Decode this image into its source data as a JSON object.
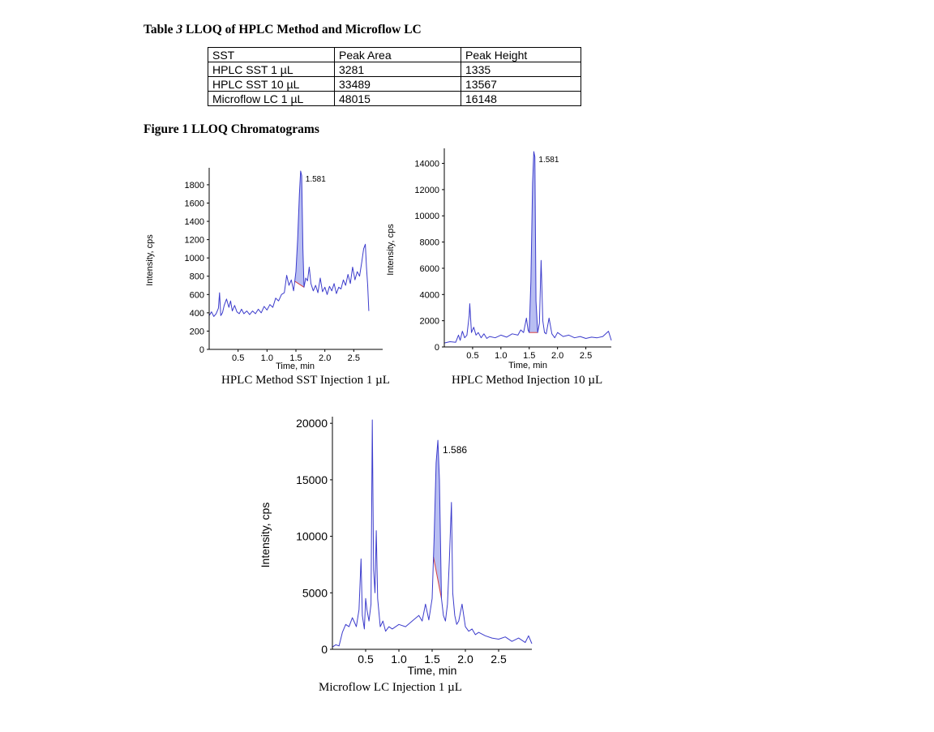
{
  "table": {
    "caption_prefix": "Table ",
    "caption_number": "3",
    "caption_text": " LLOQ of HPLC Method and Microflow LC",
    "headers": [
      "SST",
      "Peak Area",
      "Peak Height"
    ],
    "rows": [
      [
        "HPLC SST 1 µL",
        "3281",
        "1335"
      ],
      [
        "HPLC SST 10 µL",
        "33489",
        "13567"
      ],
      [
        "Microflow LC 1 µL",
        "48015",
        "16148"
      ]
    ]
  },
  "figure": {
    "title": "Figure 1 LLOQ Chromatograms"
  },
  "chart_data": [
    {
      "type": "line",
      "caption": "HPLC Method SST Injection 1 µL",
      "xlabel": "Time, min",
      "ylabel": "Intensity, cps",
      "xlim": [
        0.0,
        3.0
      ],
      "ylim": [
        0,
        1950
      ],
      "xticks": [
        "0.5",
        "1.0",
        "1.5",
        "2.0",
        "2.5"
      ],
      "yticks": [
        "0",
        "200",
        "400",
        "600",
        "800",
        "1000",
        "1200",
        "1400",
        "1600",
        "1800"
      ],
      "peak_label": "1.581",
      "peak": {
        "start": 1.48,
        "end": 1.64,
        "apex": 1.581
      },
      "series": [
        {
          "line_color": "#3c3ccc",
          "fill_color": "#b8bef2",
          "baseline_color": "#d94040",
          "x": [
            0.0,
            0.04,
            0.08,
            0.12,
            0.16,
            0.18,
            0.2,
            0.23,
            0.26,
            0.3,
            0.34,
            0.37,
            0.4,
            0.44,
            0.48,
            0.52,
            0.56,
            0.6,
            0.65,
            0.7,
            0.75,
            0.8,
            0.85,
            0.9,
            0.95,
            1.0,
            1.05,
            1.1,
            1.15,
            1.2,
            1.25,
            1.3,
            1.34,
            1.38,
            1.42,
            1.46,
            1.5,
            1.53,
            1.56,
            1.581,
            1.6,
            1.62,
            1.64,
            1.67,
            1.7,
            1.73,
            1.76,
            1.8,
            1.84,
            1.88,
            1.92,
            1.96,
            2.0,
            2.04,
            2.08,
            2.12,
            2.16,
            2.2,
            2.24,
            2.28,
            2.32,
            2.36,
            2.4,
            2.44,
            2.48,
            2.52,
            2.56,
            2.6,
            2.64,
            2.67,
            2.7,
            2.72,
            2.74,
            2.76
          ],
          "values": [
            370,
            410,
            360,
            390,
            450,
            620,
            370,
            400,
            480,
            550,
            460,
            530,
            420,
            480,
            410,
            390,
            440,
            390,
            420,
            380,
            420,
            390,
            440,
            400,
            470,
            430,
            490,
            460,
            560,
            530,
            600,
            620,
            810,
            700,
            760,
            640,
            850,
            1200,
            1700,
            1950,
            1900,
            1100,
            680,
            780,
            750,
            900,
            720,
            640,
            700,
            620,
            780,
            630,
            680,
            600,
            690,
            640,
            720,
            610,
            680,
            660,
            760,
            700,
            820,
            720,
            900,
            760,
            850,
            800,
            960,
            1100,
            1150,
            900,
            700,
            420
          ]
        }
      ]
    },
    {
      "type": "line",
      "caption": "HPLC Method Injection 10 µL",
      "xlabel": "Time, min",
      "ylabel": "Intensity, cps",
      "xlim": [
        0.0,
        2.95
      ],
      "ylim": [
        0,
        14900
      ],
      "xticks": [
        "0.5",
        "1.0",
        "1.5",
        "2.0",
        "2.5"
      ],
      "yticks": [
        "0",
        "2000",
        "4000",
        "6000",
        "8000",
        "10000",
        "12000",
        "14000"
      ],
      "peak_label": "1.581",
      "peak": {
        "start": 1.5,
        "end": 1.65,
        "apex": 1.581
      },
      "series": [
        {
          "line_color": "#3c3ccc",
          "fill_color": "#b8bef2",
          "baseline_color": "#d94040",
          "x": [
            0.0,
            0.1,
            0.2,
            0.25,
            0.28,
            0.32,
            0.36,
            0.4,
            0.44,
            0.45,
            0.48,
            0.52,
            0.56,
            0.6,
            0.65,
            0.7,
            0.75,
            0.8,
            0.9,
            1.0,
            1.1,
            1.2,
            1.3,
            1.35,
            1.4,
            1.45,
            1.48,
            1.5,
            1.53,
            1.56,
            1.581,
            1.6,
            1.62,
            1.65,
            1.68,
            1.71,
            1.74,
            1.77,
            1.8,
            1.85,
            1.9,
            1.95,
            2.0,
            2.1,
            2.2,
            2.3,
            2.4,
            2.5,
            2.6,
            2.7,
            2.8,
            2.9,
            2.95
          ],
          "values": [
            300,
            400,
            350,
            900,
            500,
            1200,
            700,
            900,
            2400,
            3300,
            1100,
            1500,
            900,
            1100,
            700,
            1000,
            650,
            800,
            700,
            900,
            750,
            1000,
            900,
            1300,
            1100,
            2200,
            1300,
            1100,
            5000,
            12500,
            14900,
            14500,
            3500,
            1100,
            1800,
            6600,
            2000,
            1100,
            1000,
            2200,
            1000,
            700,
            1100,
            800,
            900,
            700,
            800,
            650,
            750,
            700,
            800,
            1200,
            500
          ]
        }
      ]
    },
    {
      "type": "line",
      "caption": "Microflow LC Injection 1 µL",
      "xlabel": "Time, min",
      "ylabel": "Intensity, cps",
      "xlim": [
        0.0,
        3.0
      ],
      "ylim": [
        0,
        20300
      ],
      "xticks": [
        "0.5",
        "1.0",
        "1.5",
        "2.0",
        "2.5"
      ],
      "yticks": [
        "0",
        "5000",
        "10000",
        "15000",
        "20000"
      ],
      "peak_label": "1.586",
      "peak": {
        "start": 1.52,
        "end": 1.64,
        "apex": 1.586
      },
      "series": [
        {
          "line_color": "#3c3ccc",
          "fill_color": "#b8bef2",
          "baseline_color": "#d94040",
          "x": [
            0.0,
            0.05,
            0.1,
            0.15,
            0.2,
            0.25,
            0.3,
            0.33,
            0.36,
            0.4,
            0.43,
            0.45,
            0.48,
            0.5,
            0.52,
            0.55,
            0.58,
            0.6,
            0.62,
            0.64,
            0.66,
            0.68,
            0.72,
            0.76,
            0.8,
            0.85,
            0.9,
            1.0,
            1.1,
            1.2,
            1.3,
            1.35,
            1.4,
            1.45,
            1.5,
            1.53,
            1.56,
            1.586,
            1.61,
            1.64,
            1.67,
            1.7,
            1.73,
            1.76,
            1.79,
            1.81,
            1.84,
            1.87,
            1.9,
            1.95,
            2.0,
            2.05,
            2.1,
            2.15,
            2.2,
            2.3,
            2.4,
            2.5,
            2.6,
            2.7,
            2.8,
            2.9,
            2.95,
            3.0
          ],
          "values": [
            200,
            400,
            300,
            1500,
            2200,
            2000,
            2800,
            2400,
            2000,
            3500,
            8000,
            3000,
            1800,
            4500,
            3500,
            2500,
            4000,
            20300,
            7000,
            5000,
            10500,
            4500,
            2000,
            2500,
            1600,
            2000,
            1800,
            2200,
            2000,
            2500,
            3000,
            2500,
            4000,
            2600,
            4500,
            10000,
            16500,
            18500,
            15000,
            4500,
            3000,
            2500,
            4000,
            8000,
            13000,
            5000,
            3000,
            2200,
            2500,
            4000,
            2000,
            1600,
            1800,
            1300,
            1500,
            1200,
            1000,
            900,
            1100,
            700,
            1000,
            600,
            1200,
            500
          ]
        }
      ]
    }
  ]
}
